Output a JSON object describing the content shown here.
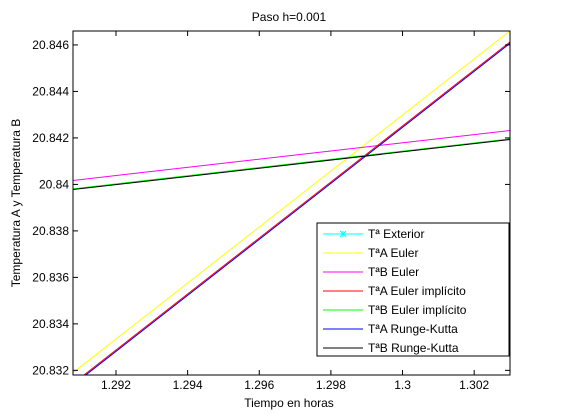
{
  "chart_data": {
    "type": "line",
    "title": "Paso h=0.001",
    "xlabel": "Tiempo en horas",
    "ylabel": "Temperatura A y Temperatura B",
    "xlim": [
      1.2908,
      1.303
    ],
    "ylim": [
      20.8318,
      20.8466
    ],
    "xticks": [
      1.292,
      1.294,
      1.296,
      1.298,
      1.3,
      1.302
    ],
    "xtick_labels": [
      "1.292",
      "1.294",
      "1.296",
      "1.298",
      "1.3",
      "1.302"
    ],
    "yticks": [
      20.832,
      20.834,
      20.836,
      20.838,
      20.84,
      20.842,
      20.844,
      20.846
    ],
    "ytick_labels": [
      "20.832",
      "20.834",
      "20.836",
      "20.838",
      "20.84",
      "20.842",
      "20.844",
      "20.846"
    ],
    "grid": false,
    "legend_position": "bottom-right",
    "series": [
      {
        "name": "Tª Exterior",
        "color": "#00ffff",
        "marker": "asterisk",
        "x": [],
        "y": []
      },
      {
        "name": "TªA Euler",
        "color": "#ffff00",
        "x": [
          1.2908,
          1.303
        ],
        "y": [
          20.8319,
          20.8466
        ]
      },
      {
        "name": "TªB Euler",
        "color": "#ff00ff",
        "x": [
          1.2908,
          1.303
        ],
        "y": [
          20.84017,
          20.84232
        ]
      },
      {
        "name": "TªA Euler implícito",
        "color": "#ff0000",
        "x": [
          1.2908,
          1.303
        ],
        "y": [
          20.83143,
          20.84613
        ]
      },
      {
        "name": "TªB Euler implícito",
        "color": "#00ff00",
        "x": [
          1.2908,
          1.303
        ],
        "y": [
          20.83981,
          20.84196
        ]
      },
      {
        "name": "TªA Runge-Kutta",
        "color": "#0000ff",
        "x": [
          1.2908,
          1.303
        ],
        "y": [
          20.83137,
          20.84607
        ]
      },
      {
        "name": "TªB Runge-Kutta",
        "color": "#000000",
        "x": [
          1.2908,
          1.303
        ],
        "y": [
          20.83978,
          20.84193
        ]
      }
    ]
  }
}
